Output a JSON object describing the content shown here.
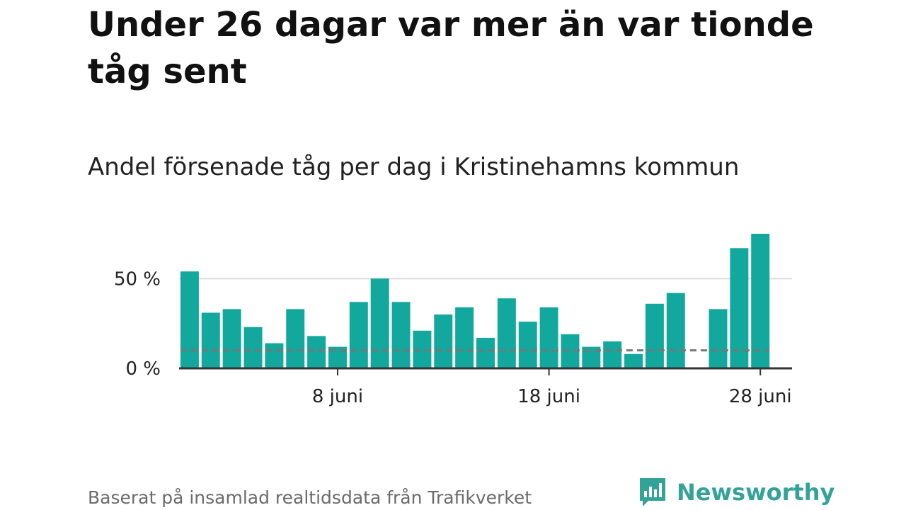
{
  "title": "Under 26 dagar var mer än var tionde tåg sent",
  "subtitle": "Andel försenade tåg per dag i Kristinehamns kommun",
  "source": "Baserat på insamlad realtidsdata från Trafikverket",
  "brand": "Newsworthy",
  "colors": {
    "bar": "#13a89e",
    "reference_line": "#777777",
    "grid": "#dddddd",
    "axis": "#333333",
    "brand": "#33a39a"
  },
  "chart_data": {
    "type": "bar",
    "x": [
      1,
      2,
      3,
      4,
      5,
      6,
      7,
      8,
      9,
      10,
      11,
      12,
      13,
      14,
      15,
      16,
      17,
      18,
      19,
      20,
      21,
      22,
      23,
      24,
      25,
      26,
      27,
      28,
      29
    ],
    "values": [
      54,
      31,
      33,
      23,
      14,
      33,
      18,
      12,
      37,
      50,
      37,
      21,
      30,
      34,
      17,
      39,
      26,
      34,
      19,
      12,
      15,
      8,
      36,
      42,
      null,
      33,
      67,
      75,
      null
    ],
    "reference_value": 10,
    "xticks": [
      {
        "x": 8,
        "label": "8 juni"
      },
      {
        "x": 18,
        "label": "18 juni"
      },
      {
        "x": 28,
        "label": "28 juni"
      }
    ],
    "yticks": [
      {
        "y": 0,
        "label": "0 %"
      },
      {
        "y": 50,
        "label": "50 %"
      }
    ],
    "ylim": [
      0,
      75
    ],
    "xlim": [
      0.5,
      29.5
    ],
    "grid": true
  }
}
